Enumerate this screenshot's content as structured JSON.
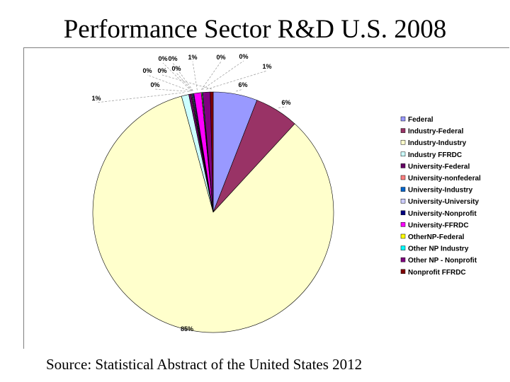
{
  "title": "Performance Sector R&D U.S. 2008",
  "source": "Source: Statistical Abstract of the United States 2012",
  "chart_data": {
    "type": "pie",
    "title": "Performance Sector R&D U.S. 2008",
    "legend_position": "right",
    "slices": [
      {
        "name": "Federal",
        "value": 6,
        "label": "6%",
        "color": "#9999ff"
      },
      {
        "name": "Industry-Federal",
        "value": 6,
        "label": "6%",
        "color": "#993366"
      },
      {
        "name": "Industry-Industry",
        "value": 85,
        "label": "85%",
        "color": "#ffffcc"
      },
      {
        "name": "Industry FFRDC",
        "value": 1,
        "label": "1%",
        "color": "#ccffff"
      },
      {
        "name": "University-Federal",
        "value": 0.3,
        "label": "0%",
        "color": "#660066"
      },
      {
        "name": "University-nonfederal",
        "value": 0.1,
        "label": "0%",
        "color": "#ff8080"
      },
      {
        "name": "University-Industry",
        "value": 0.1,
        "label": "0%",
        "color": "#0066cc"
      },
      {
        "name": "University-University",
        "value": 0.1,
        "label": "0%",
        "color": "#ccccff"
      },
      {
        "name": "University-Nonprofit",
        "value": 0.1,
        "label": "0%",
        "color": "#000080"
      },
      {
        "name": "University-FFRDC",
        "value": 1,
        "label": "1%",
        "color": "#ff00ff"
      },
      {
        "name": "OtherNP-Federal",
        "value": 0.1,
        "label": "0%",
        "color": "#ffff00"
      },
      {
        "name": "Other NP Industry",
        "value": 0.1,
        "label": "0%",
        "color": "#00ffff"
      },
      {
        "name": "Other NP - Nonprofit",
        "value": 1,
        "label": "1%",
        "color": "#800080"
      },
      {
        "name": "Nonprofit FFRDC",
        "value": 0.4,
        "label": "0%",
        "color": "#800000"
      }
    ]
  }
}
